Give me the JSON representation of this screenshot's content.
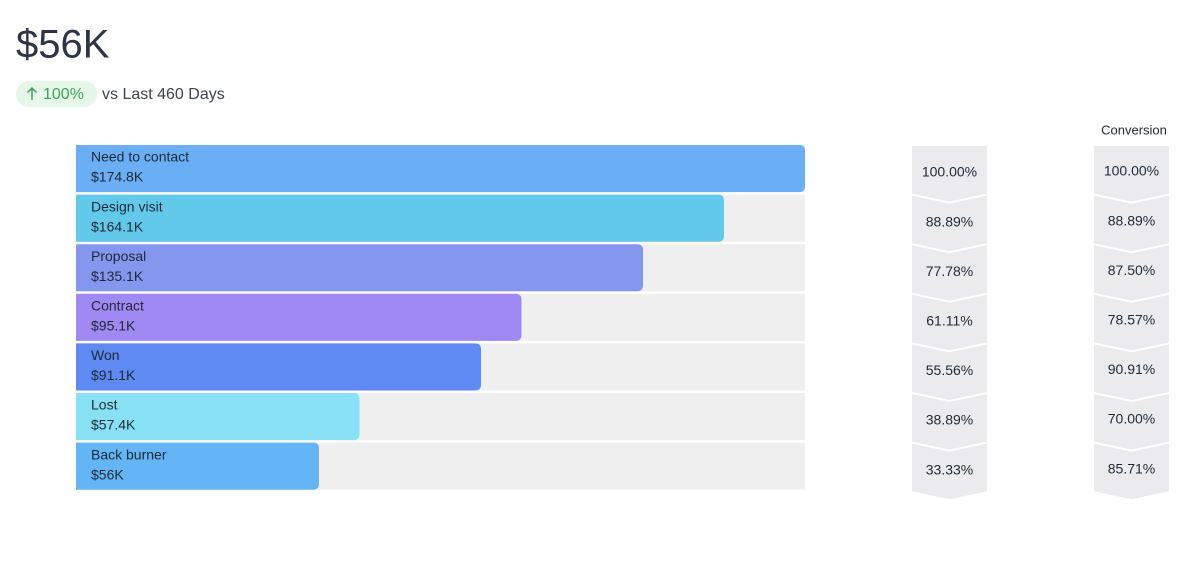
{
  "headline": "$56K",
  "change": "100%",
  "comparison": "vs Last 460 Days",
  "chart_data": {
    "type": "funnel",
    "categories": [
      "Need to contact",
      "Design visit",
      "Proposal",
      "Contract",
      "Won",
      "Lost",
      "Back burner"
    ],
    "amounts": [
      "$174.8K",
      "$164.1K",
      "$135.1K",
      "$95.1K",
      "$91.1K",
      "$57.4K",
      "$56K"
    ],
    "values": [
      100,
      88.89,
      77.78,
      61.11,
      55.56,
      38.89,
      33.33
    ],
    "value_labels": [
      "100.00%",
      "88.89%",
      "77.78%",
      "61.11%",
      "55.56%",
      "38.89%",
      "33.33%"
    ],
    "colors": [
      "#6aaef6",
      "#63c9ea",
      "#8596ef",
      "#a089f3",
      "#5f8af3",
      "#88e0f4",
      "#63b5f5"
    ],
    "xlim": [
      0,
      100
    ],
    "conversion_title": "Conversion",
    "conversion": [
      100,
      88.89,
      87.5,
      78.57,
      90.91,
      70,
      85.71
    ],
    "conversion_labels": [
      "100.00%",
      "88.89%",
      "87.50%",
      "78.57%",
      "90.91%",
      "70.00%",
      "85.71%"
    ]
  }
}
